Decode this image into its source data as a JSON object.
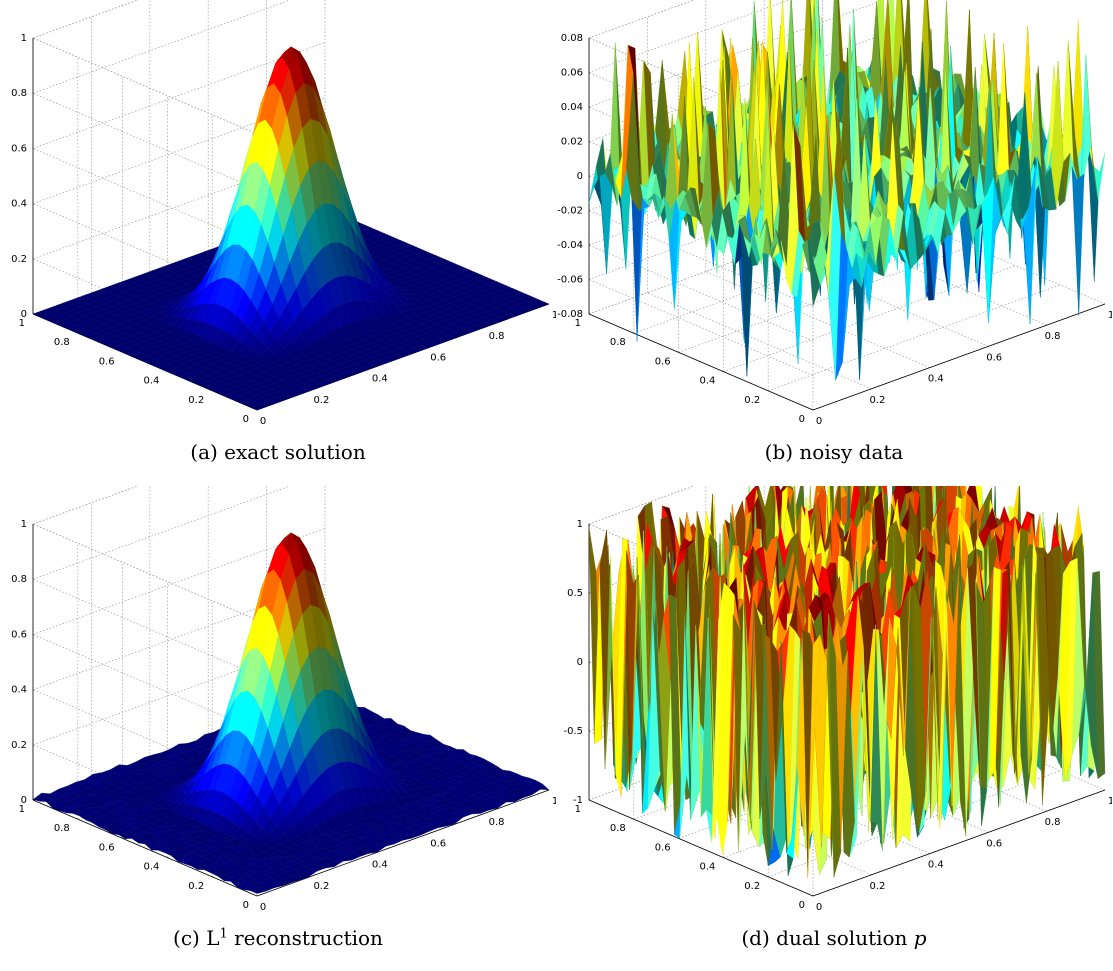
{
  "figure": {
    "panels": [
      {
        "id": "a",
        "caption": {
          "letter": "(a)",
          "pre": "exact solution",
          "sup": "",
          "post": "",
          "ital": ""
        },
        "kind": "bump",
        "z_ticks": [
          "0",
          "0.2",
          "0.4",
          "0.6",
          "0.8",
          "1"
        ],
        "x_ticks": [
          "0",
          "0.2",
          "0.4",
          "0.6",
          "0.8",
          "1"
        ],
        "y_ticks": [
          "0",
          "0.2",
          "0.4",
          "0.6",
          "0.8",
          "1"
        ]
      },
      {
        "id": "b",
        "caption": {
          "letter": "(b)",
          "pre": "noisy data",
          "sup": "",
          "post": "",
          "ital": ""
        },
        "kind": "noise",
        "z_ticks": [
          "-0.08",
          "-0.06",
          "-0.04",
          "-0.02",
          "0",
          "0.02",
          "0.04",
          "0.06",
          "0.08"
        ],
        "x_ticks": [
          "0",
          "0.2",
          "0.4",
          "0.6",
          "0.8",
          "1"
        ],
        "y_ticks": [
          "0",
          "0.2",
          "0.4",
          "0.6",
          "0.8",
          "1"
        ]
      },
      {
        "id": "c",
        "caption": {
          "letter": "(c)",
          "pre": "L",
          "sup": "1",
          "post": " reconstruction",
          "ital": ""
        },
        "kind": "bump-rough",
        "z_ticks": [
          "0",
          "0.2",
          "0.4",
          "0.6",
          "0.8",
          "1"
        ],
        "x_ticks": [
          "0",
          "0.2",
          "0.4",
          "0.6",
          "0.8",
          "1"
        ],
        "y_ticks": [
          "0",
          "0.2",
          "0.4",
          "0.6",
          "0.8",
          "1"
        ]
      },
      {
        "id": "d",
        "caption": {
          "letter": "(d)",
          "pre": "dual solution ",
          "sup": "",
          "post": "",
          "ital": "p"
        },
        "kind": "dual",
        "z_ticks": [
          "-1",
          "-0.5",
          "0",
          "0.5",
          "1"
        ],
        "x_ticks": [
          "0",
          "0.2",
          "0.4",
          "0.6",
          "0.8",
          "1"
        ],
        "y_ticks": [
          "0",
          "0.2",
          "0.4",
          "0.6",
          "0.8",
          "1"
        ]
      }
    ]
  },
  "chart_data": [
    {
      "type": "surface",
      "caption": "(a) exact solution",
      "surface": "smooth bump on flat base",
      "zlim": [
        0,
        1
      ],
      "xlim": [
        0,
        1
      ],
      "ylim": [
        0,
        1
      ],
      "peak": {
        "x": 0.5,
        "y": 0.5,
        "z": 0.95
      },
      "colormap": "jet",
      "grid": true
    },
    {
      "type": "surface",
      "caption": "(b) noisy data",
      "surface": "random noise",
      "zlim": [
        -0.08,
        0.08
      ],
      "xlim": [
        0,
        1
      ],
      "ylim": [
        0,
        1
      ],
      "colormap": "jet",
      "grid": true
    },
    {
      "type": "surface",
      "caption": "(c) L1 reconstruction",
      "surface": "smooth bump on slightly rough base",
      "zlim": [
        0,
        1
      ],
      "xlim": [
        0,
        1
      ],
      "ylim": [
        0,
        1
      ],
      "peak": {
        "x": 0.5,
        "y": 0.5,
        "z": 0.95
      },
      "colormap": "jet",
      "grid": true
    },
    {
      "type": "surface",
      "caption": "(d) dual solution p",
      "surface": "oscillating between -1 and 1",
      "zlim": [
        -1,
        1
      ],
      "xlim": [
        0,
        1
      ],
      "ylim": [
        0,
        1
      ],
      "colormap": "jet",
      "grid": true
    }
  ]
}
